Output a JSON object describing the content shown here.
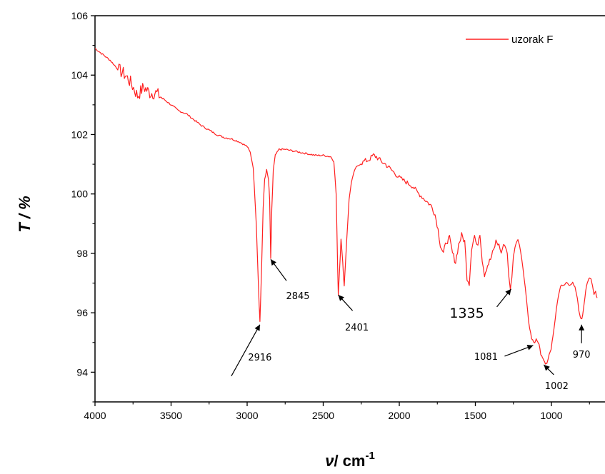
{
  "chart_data": {
    "type": "line",
    "xlabel_symbol": "ν",
    "xlabel_unit": "/ cm",
    "xlabel_exp": "-1",
    "ylabel": "T / %",
    "xlim": [
      4000,
      700
    ],
    "ylim": [
      93,
      106
    ],
    "x_ticks": [
      4000,
      3500,
      3000,
      2500,
      2000,
      1500,
      1000
    ],
    "y_ticks": [
      94,
      96,
      98,
      100,
      102,
      104,
      106
    ],
    "x_reversed": true,
    "grid": false,
    "legend_position": "top-right",
    "series": [
      {
        "name": "uzorak F",
        "color": "#ff2020",
        "points": [
          [
            4000,
            104.9
          ],
          [
            3950,
            104.7
          ],
          [
            3900,
            104.5
          ],
          [
            3850,
            104.2
          ],
          [
            3800,
            104.0
          ],
          [
            3760,
            103.7
          ],
          [
            3720,
            103.3
          ],
          [
            3680,
            103.6
          ],
          [
            3640,
            103.4
          ],
          [
            3600,
            103.4
          ],
          [
            3550,
            103.2
          ],
          [
            3500,
            103.0
          ],
          [
            3450,
            102.8
          ],
          [
            3400,
            102.7
          ],
          [
            3350,
            102.5
          ],
          [
            3300,
            102.3
          ],
          [
            3250,
            102.15
          ],
          [
            3200,
            102.0
          ],
          [
            3150,
            101.9
          ],
          [
            3100,
            101.85
          ],
          [
            3050,
            101.75
          ],
          [
            3000,
            101.6
          ],
          [
            2980,
            101.4
          ],
          [
            2960,
            100.9
          ],
          [
            2940,
            99.0
          ],
          [
            2925,
            96.8
          ],
          [
            2916,
            95.7
          ],
          [
            2905,
            97.5
          ],
          [
            2895,
            99.5
          ],
          [
            2885,
            100.5
          ],
          [
            2872,
            100.8
          ],
          [
            2860,
            100.5
          ],
          [
            2852,
            99.8
          ],
          [
            2845,
            97.8
          ],
          [
            2838,
            99.5
          ],
          [
            2828,
            100.8
          ],
          [
            2815,
            101.3
          ],
          [
            2790,
            101.5
          ],
          [
            2750,
            101.5
          ],
          [
            2700,
            101.45
          ],
          [
            2650,
            101.4
          ],
          [
            2600,
            101.35
          ],
          [
            2550,
            101.3
          ],
          [
            2500,
            101.3
          ],
          [
            2450,
            101.25
          ],
          [
            2430,
            101.1
          ],
          [
            2415,
            100.0
          ],
          [
            2405,
            97.5
          ],
          [
            2401,
            96.6
          ],
          [
            2392,
            97.5
          ],
          [
            2383,
            98.5
          ],
          [
            2372,
            97.7
          ],
          [
            2362,
            96.9
          ],
          [
            2345,
            98.5
          ],
          [
            2330,
            99.8
          ],
          [
            2315,
            100.4
          ],
          [
            2290,
            100.85
          ],
          [
            2260,
            101.0
          ],
          [
            2230,
            101.1
          ],
          [
            2200,
            101.15
          ],
          [
            2170,
            101.3
          ],
          [
            2150,
            101.25
          ],
          [
            2120,
            101.1
          ],
          [
            2090,
            101.0
          ],
          [
            2060,
            100.85
          ],
          [
            2030,
            100.7
          ],
          [
            2000,
            100.55
          ],
          [
            1970,
            100.45
          ],
          [
            1940,
            100.35
          ],
          [
            1910,
            100.25
          ],
          [
            1880,
            100.05
          ],
          [
            1850,
            99.9
          ],
          [
            1820,
            99.75
          ],
          [
            1790,
            99.6
          ],
          [
            1765,
            99.3
          ],
          [
            1745,
            98.8
          ],
          [
            1730,
            98.3
          ],
          [
            1710,
            98.0
          ],
          [
            1690,
            98.4
          ],
          [
            1670,
            98.5
          ],
          [
            1650,
            98.0
          ],
          [
            1630,
            97.7
          ],
          [
            1610,
            98.3
          ],
          [
            1590,
            98.6
          ],
          [
            1570,
            98.4
          ],
          [
            1555,
            97.2
          ],
          [
            1540,
            97.0
          ],
          [
            1525,
            98.2
          ],
          [
            1505,
            98.6
          ],
          [
            1490,
            98.2
          ],
          [
            1470,
            98.7
          ],
          [
            1455,
            97.8
          ],
          [
            1440,
            97.3
          ],
          [
            1420,
            97.6
          ],
          [
            1400,
            97.8
          ],
          [
            1380,
            98.1
          ],
          [
            1365,
            98.4
          ],
          [
            1345,
            98.3
          ],
          [
            1330,
            98.0
          ],
          [
            1315,
            98.3
          ],
          [
            1300,
            98.2
          ],
          [
            1290,
            98.0
          ],
          [
            1280,
            97.2
          ],
          [
            1270,
            96.8
          ],
          [
            1260,
            97.2
          ],
          [
            1250,
            97.9
          ],
          [
            1240,
            98.2
          ],
          [
            1230,
            98.4
          ],
          [
            1220,
            98.45
          ],
          [
            1210,
            98.3
          ],
          [
            1195,
            97.8
          ],
          [
            1180,
            97.2
          ],
          [
            1165,
            96.5
          ],
          [
            1150,
            95.7
          ],
          [
            1130,
            95.1
          ],
          [
            1110,
            95.0
          ],
          [
            1100,
            95.1
          ],
          [
            1090,
            95.0
          ],
          [
            1081,
            94.95
          ],
          [
            1070,
            94.6
          ],
          [
            1060,
            94.5
          ],
          [
            1050,
            94.4
          ],
          [
            1040,
            94.3
          ],
          [
            1030,
            94.3
          ],
          [
            1015,
            94.6
          ],
          [
            1002,
            94.8
          ],
          [
            990,
            95.2
          ],
          [
            975,
            95.8
          ],
          [
            960,
            96.4
          ],
          [
            940,
            96.9
          ],
          [
            920,
            96.95
          ],
          [
            900,
            97.0
          ],
          [
            880,
            96.95
          ],
          [
            860,
            97.0
          ],
          [
            845,
            96.9
          ],
          [
            830,
            96.5
          ],
          [
            820,
            96.1
          ],
          [
            810,
            95.85
          ],
          [
            800,
            95.8
          ],
          [
            790,
            96.1
          ],
          [
            780,
            96.5
          ],
          [
            770,
            96.9
          ],
          [
            760,
            97.05
          ],
          [
            750,
            97.2
          ],
          [
            740,
            97.15
          ],
          [
            730,
            96.9
          ],
          [
            720,
            96.6
          ],
          [
            710,
            96.7
          ],
          [
            700,
            96.5
          ]
        ]
      }
    ],
    "annotations": [
      {
        "label": "2916",
        "x": 2916,
        "y": 95.6
      },
      {
        "label": "2845",
        "x": 2845,
        "y": 97.8
      },
      {
        "label": "2401",
        "x": 2401,
        "y": 96.6
      },
      {
        "label": "1335",
        "x": 1265,
        "y": 96.8
      },
      {
        "label": "1081",
        "x": 1120,
        "y": 94.9
      },
      {
        "label": "1002",
        "x": 1050,
        "y": 94.25
      },
      {
        "label": "970",
        "x": 802,
        "y": 95.6
      }
    ]
  }
}
